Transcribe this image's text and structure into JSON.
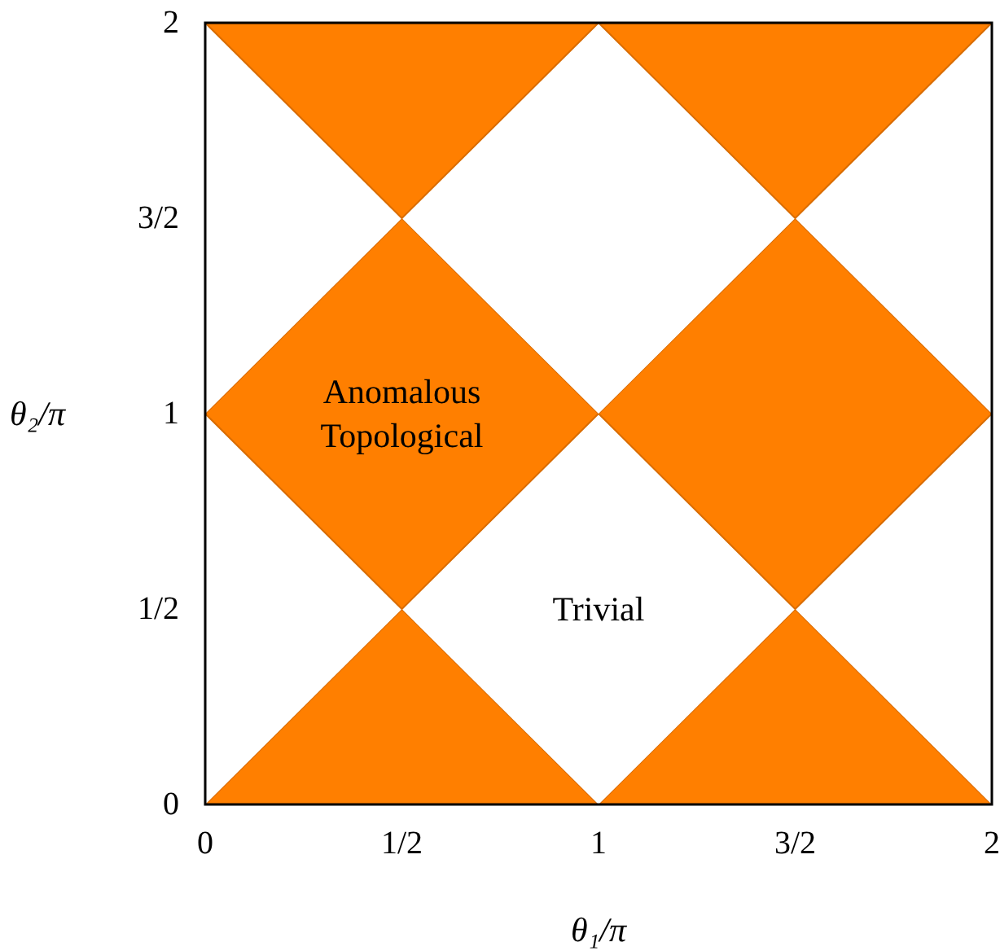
{
  "chart_data": {
    "type": "area",
    "xlabel": "θ₁/π",
    "ylabel": "θ₂/π",
    "xlim": [
      0,
      2
    ],
    "ylim": [
      0,
      2
    ],
    "xticks": [
      0,
      {
        "value": 0.5,
        "label": "1/2"
      },
      1,
      {
        "value": 1.5,
        "label": "3/2"
      },
      2
    ],
    "yticks": [
      0,
      {
        "value": 0.5,
        "label": "1/2"
      },
      1,
      {
        "value": 1.5,
        "label": "3/2"
      },
      2
    ],
    "x": [
      0,
      0.5,
      1,
      1.5,
      2
    ],
    "stacked": true,
    "series": [
      {
        "color": "#ff7f00",
        "values": [
          0,
          0.5,
          0,
          0.5,
          0
        ]
      },
      {
        "color": "#ffffff",
        "values": [
          1,
          0,
          1,
          0,
          1
        ]
      },
      {
        "color": "#ff7f00",
        "values": [
          0,
          1,
          0,
          1,
          0
        ]
      },
      {
        "color": "#ffffff",
        "values": [
          1,
          0,
          1,
          0,
          1
        ]
      },
      {
        "color": "#ff7f00",
        "values": [
          0,
          0.5,
          0,
          0.5,
          0
        ]
      }
    ],
    "annotations": [
      "Anomalous\nTopological",
      "Trivial"
    ]
  }
}
